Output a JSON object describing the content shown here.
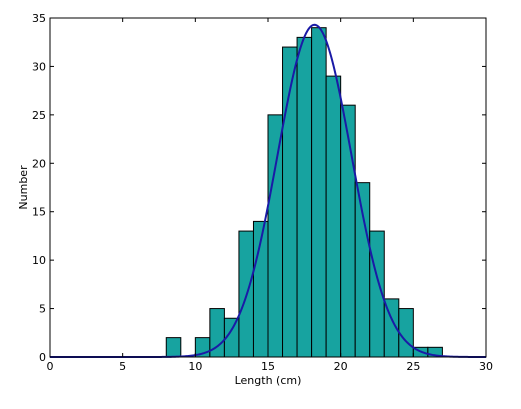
{
  "chart_data": {
    "type": "bar",
    "title": "",
    "xlabel": "Length (cm)",
    "ylabel": "Number",
    "xlim": [
      0,
      30
    ],
    "ylim": [
      0,
      35
    ],
    "xticks": [
      0,
      5,
      10,
      15,
      20,
      25,
      30
    ],
    "yticks": [
      0,
      5,
      10,
      15,
      20,
      25,
      30,
      35
    ],
    "grid": false,
    "legend": "none",
    "colors": {
      "bar_fill": "#17a3a0",
      "bar_edge": "#000000",
      "curve": "#1a1aa6"
    },
    "bins": {
      "width": 1,
      "left_edges": [
        8,
        10,
        11,
        12,
        13,
        14,
        15,
        16,
        17,
        18,
        19,
        20,
        21,
        22,
        23,
        24,
        25,
        26
      ],
      "values": [
        2,
        2,
        5,
        4,
        13,
        14,
        25,
        32,
        33,
        34,
        29,
        26,
        18,
        13,
        6,
        5,
        1,
        1
      ]
    },
    "fit_curve": {
      "type": "gaussian",
      "mean": 18.2,
      "sd": 2.55,
      "peak": 34.3
    }
  }
}
